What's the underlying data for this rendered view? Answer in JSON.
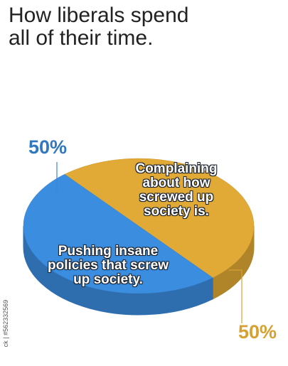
{
  "chart_data": {
    "type": "pie",
    "title": "How liberals spend all of their time.",
    "categories": [
      "Complaining about how screwed up society is.",
      "Pushing insane policies that screw up society."
    ],
    "values": [
      50,
      50
    ],
    "value_labels": [
      "50%",
      "50%"
    ],
    "colors": [
      "#e1a935",
      "#3b8de0"
    ],
    "watermark": "ck | #562332569"
  }
}
